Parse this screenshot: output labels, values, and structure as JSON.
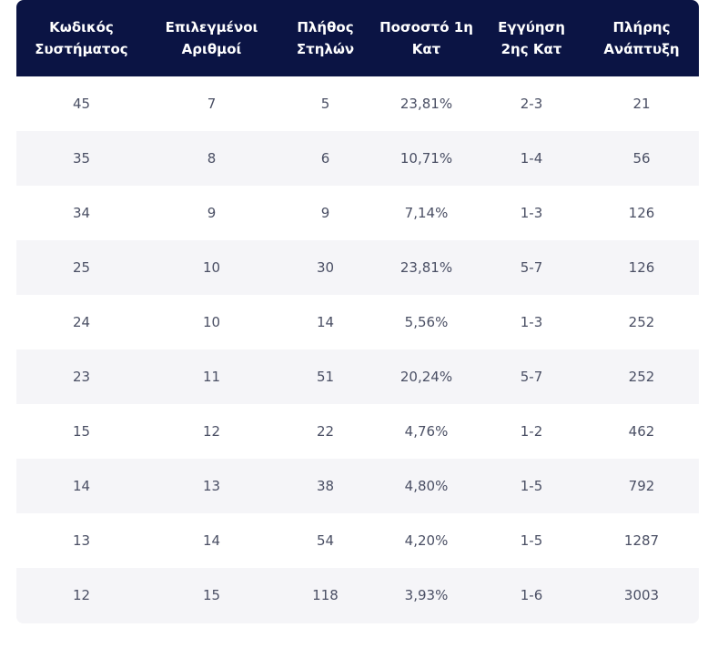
{
  "header": [
    [
      "Κωδικός",
      "Συστήματος"
    ],
    [
      "Επιλεγμένοι",
      "Αριθμοί"
    ],
    [
      "Πλήθος",
      "Στηλών"
    ],
    [
      "Ποσοστό 1η",
      "Κατ"
    ],
    [
      "Εγγύηση",
      "2ης Κατ"
    ],
    [
      "Πλήρης",
      "Ανάπτυξη"
    ]
  ],
  "rows": [
    [
      "45",
      "7",
      "5",
      "23,81%",
      "2-3",
      "21"
    ],
    [
      "35",
      "8",
      "6",
      "10,71%",
      "1-4",
      "56"
    ],
    [
      "34",
      "9",
      "9",
      "7,14%",
      "1-3",
      "126"
    ],
    [
      "25",
      "10",
      "30",
      "23,81%",
      "5-7",
      "126"
    ],
    [
      "24",
      "10",
      "14",
      "5,56%",
      "1-3",
      "252"
    ],
    [
      "23",
      "11",
      "51",
      "20,24%",
      "5-7",
      "252"
    ],
    [
      "15",
      "12",
      "22",
      "4,76%",
      "1-2",
      "462"
    ],
    [
      "14",
      "13",
      "38",
      "4,80%",
      "1-5",
      "792"
    ],
    [
      "13",
      "14",
      "54",
      "4,20%",
      "1-5",
      "1287"
    ],
    [
      "12",
      "15",
      "118",
      "3,93%",
      "1-6",
      "3003"
    ]
  ],
  "colors": {
    "header_bg": "#0b1444",
    "header_text": "#ffffff",
    "row_alt_bg": "#f5f5f8",
    "cell_text": "#4a4f64"
  }
}
